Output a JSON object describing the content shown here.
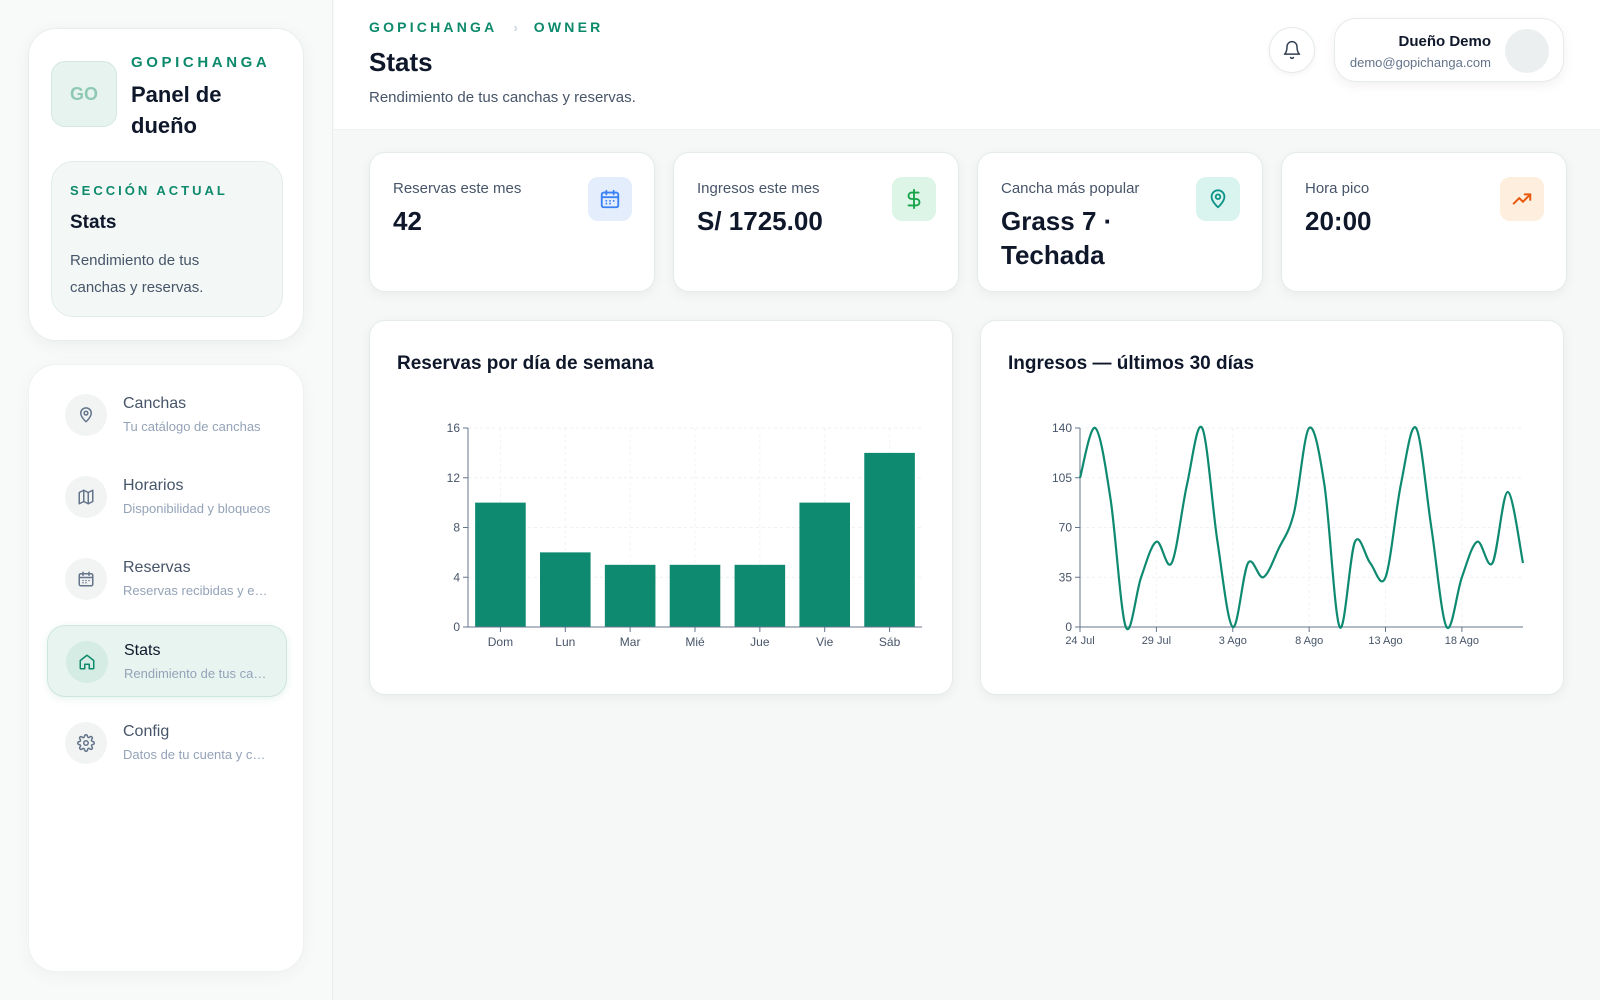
{
  "colors": {
    "accent": "#0d8a6c",
    "bar": "#0e8a70"
  },
  "sidebar": {
    "logo_text": "GO",
    "brand": "GOPICHANGA",
    "panel_title": "Panel de dueño",
    "current_section": {
      "label": "SECCIÓN ACTUAL",
      "title": "Stats",
      "description": "Rendimiento de tus canchas y reservas."
    },
    "items": [
      {
        "label": "Canchas",
        "sub": "Tu catálogo de canchas",
        "icon": "map-pin-icon"
      },
      {
        "label": "Horarios",
        "sub": "Disponibilidad y bloqueos",
        "icon": "map-icon"
      },
      {
        "label": "Reservas",
        "sub": "Reservas recibidas y estados",
        "icon": "calendar-icon"
      },
      {
        "label": "Stats",
        "sub": "Rendimiento de tus canchas",
        "icon": "home-icon",
        "active": true
      },
      {
        "label": "Config",
        "sub": "Datos de tu cuenta y cancha",
        "icon": "gear-icon"
      }
    ]
  },
  "header": {
    "breadcrumb": [
      "GOPICHANGA",
      "OWNER"
    ],
    "title": "Stats",
    "subtitle": "Rendimiento de tus canchas y reservas.",
    "user": {
      "name": "Dueño Demo",
      "email": "demo@gopichanga.com"
    }
  },
  "stats": [
    {
      "label": "Reservas este mes",
      "value": "42",
      "icon": "calendar-icon",
      "icon_bg": "#e3edfb",
      "icon_color": "#3b82f6"
    },
    {
      "label": "Ingresos este mes",
      "value": "S/ 1725.00",
      "icon": "dollar-icon",
      "icon_bg": "#dcf5e7",
      "icon_color": "#16a34a"
    },
    {
      "label": "Cancha más popular",
      "value": "Grass 7 · Techada",
      "icon": "map-pin-icon",
      "icon_bg": "#d9f4ee",
      "icon_color": "#0d9488"
    },
    {
      "label": "Hora pico",
      "value": "20:00",
      "icon": "trending-up-icon",
      "icon_bg": "#fdeede",
      "icon_color": "#ea580c"
    }
  ],
  "chart_data": [
    {
      "type": "bar",
      "title": "Reservas por día de semana",
      "categories": [
        "Dom",
        "Lun",
        "Mar",
        "Mié",
        "Jue",
        "Vie",
        "Sáb"
      ],
      "values": [
        10,
        6,
        5,
        5,
        5,
        10,
        14
      ],
      "ylim": [
        0,
        16
      ],
      "yticks": [
        0,
        4,
        8,
        12,
        16
      ],
      "grid": true,
      "color": "#0e8a70"
    },
    {
      "type": "line",
      "title": "Ingresos — últimos 30 días",
      "x": [
        "24 Jul",
        "25 Jul",
        "26 Jul",
        "27 Jul",
        "28 Jul",
        "29 Jul",
        "30 Jul",
        "31 Jul",
        "1 Ago",
        "2 Ago",
        "3 Ago",
        "4 Ago",
        "5 Ago",
        "6 Ago",
        "7 Ago",
        "8 Ago",
        "9 Ago",
        "10 Ago",
        "11 Ago",
        "12 Ago",
        "13 Ago",
        "14 Ago",
        "15 Ago",
        "16 Ago",
        "17 Ago",
        "18 Ago",
        "19 Ago",
        "20 Ago",
        "21 Ago",
        "22 Ago"
      ],
      "values": [
        105,
        140,
        90,
        0,
        35,
        60,
        45,
        100,
        140,
        60,
        0,
        45,
        35,
        55,
        80,
        140,
        100,
        0,
        60,
        45,
        35,
        100,
        140,
        70,
        0,
        35,
        60,
        45,
        95,
        45
      ],
      "xticks": [
        "24 Jul",
        "29 Jul",
        "3 Ago",
        "8 Ago",
        "13 Ago",
        "18 Ago"
      ],
      "ylim": [
        0,
        140
      ],
      "yticks": [
        0,
        35,
        70,
        105,
        140
      ],
      "grid": true,
      "color": "#0e8a70"
    }
  ]
}
